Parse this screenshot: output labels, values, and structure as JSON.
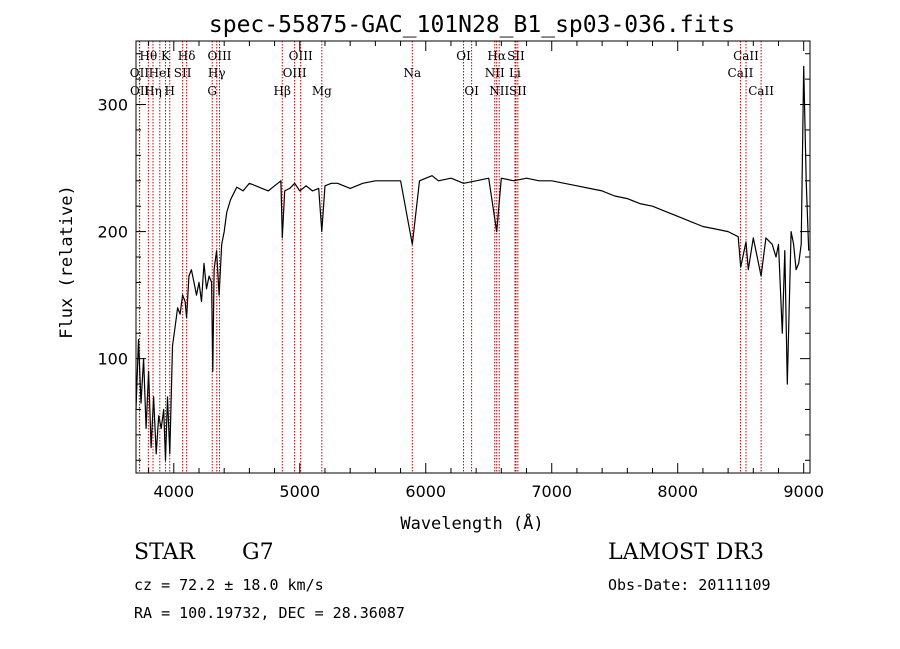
{
  "chart_data": {
    "type": "line",
    "title": "spec-55875-GAC_101N28_B1_sp03-036.fits",
    "xlabel": "Wavelength (Å)",
    "ylabel": "Flux (relative)",
    "xlim": [
      3700,
      9050
    ],
    "ylim": [
      10,
      350
    ],
    "x_ticks": [
      4000,
      5000,
      6000,
      7000,
      8000,
      9000
    ],
    "y_ticks": [
      100,
      200,
      300
    ],
    "series": [
      {
        "name": "spectrum",
        "x": [
          3700,
          3720,
          3740,
          3760,
          3780,
          3800,
          3820,
          3840,
          3860,
          3880,
          3900,
          3920,
          3934,
          3950,
          3968,
          3990,
          4010,
          4030,
          4050,
          4070,
          4090,
          4102,
          4120,
          4140,
          4160,
          4180,
          4200,
          4220,
          4240,
          4260,
          4280,
          4300,
          4310,
          4320,
          4340,
          4360,
          4380,
          4400,
          4420,
          4450,
          4500,
          4550,
          4600,
          4650,
          4700,
          4750,
          4800,
          4850,
          4861,
          4880,
          4920,
          4960,
          5000,
          5050,
          5100,
          5150,
          5175,
          5200,
          5250,
          5300,
          5400,
          5500,
          5600,
          5700,
          5800,
          5893,
          5950,
          6000,
          6050,
          6100,
          6200,
          6300,
          6400,
          6500,
          6563,
          6600,
          6700,
          6800,
          6900,
          7000,
          7100,
          7200,
          7300,
          7400,
          7500,
          7600,
          7700,
          7800,
          7900,
          8000,
          8100,
          8200,
          8300,
          8400,
          8480,
          8500,
          8542,
          8560,
          8600,
          8662,
          8700,
          8750,
          8780,
          8800,
          8830,
          8850,
          8870,
          8900,
          8920,
          8940,
          8960,
          8980,
          9000,
          9020,
          9040
        ],
        "values": [
          60,
          115,
          65,
          100,
          45,
          90,
          30,
          70,
          25,
          55,
          45,
          60,
          20,
          70,
          25,
          110,
          125,
          140,
          135,
          150,
          145,
          132,
          165,
          170,
          160,
          150,
          160,
          145,
          175,
          155,
          165,
          160,
          90,
          170,
          185,
          150,
          190,
          200,
          215,
          225,
          235,
          232,
          238,
          236,
          234,
          232,
          236,
          240,
          195,
          232,
          234,
          238,
          232,
          236,
          232,
          234,
          200,
          236,
          238,
          238,
          234,
          238,
          240,
          240,
          240,
          190,
          240,
          242,
          244,
          240,
          242,
          238,
          240,
          242,
          200,
          242,
          240,
          242,
          240,
          240,
          238,
          236,
          234,
          232,
          228,
          226,
          222,
          220,
          216,
          212,
          208,
          204,
          202,
          200,
          196,
          172,
          192,
          170,
          195,
          165,
          195,
          190,
          180,
          190,
          120,
          185,
          80,
          200,
          190,
          170,
          175,
          190,
          330,
          240,
          185
        ]
      }
    ],
    "emission_lines": [
      {
        "label": "Hθ",
        "wl": 3798,
        "row": 1
      },
      {
        "label": "OII",
        "wl": 3727,
        "row": 2
      },
      {
        "label": "OII",
        "wl": 3729,
        "row": 3
      },
      {
        "label": "HeI",
        "wl": 3889,
        "row": 2
      },
      {
        "label": "Hη",
        "wl": 3835,
        "row": 3
      },
      {
        "label": "K",
        "wl": 3934,
        "row": 1
      },
      {
        "label": "H",
        "wl": 3968,
        "row": 3
      },
      {
        "label": "SII",
        "wl": 4070,
        "row": 2
      },
      {
        "label": "Hδ",
        "wl": 4102,
        "row": 1
      },
      {
        "label": "OIII",
        "wl": 4363,
        "row": 1
      },
      {
        "label": "Hγ",
        "wl": 4341,
        "row": 2
      },
      {
        "label": "G",
        "wl": 4305,
        "row": 3
      },
      {
        "label": "Hβ",
        "wl": 4861,
        "row": 3
      },
      {
        "label": "OIII",
        "wl": 5007,
        "row": 1
      },
      {
        "label": "OIII",
        "wl": 4959,
        "row": 2
      },
      {
        "label": "Mg",
        "wl": 5175,
        "row": 3
      },
      {
        "label": "Na",
        "wl": 5893,
        "row": 2
      },
      {
        "label": "OI",
        "wl": 6300,
        "row": 1
      },
      {
        "label": "OI",
        "wl": 6364,
        "row": 3
      },
      {
        "label": "Hα",
        "wl": 6563,
        "row": 1
      },
      {
        "label": "NII",
        "wl": 6548,
        "row": 2
      },
      {
        "label": "NII",
        "wl": 6583,
        "row": 3
      },
      {
        "label": "SII",
        "wl": 6716,
        "row": 1
      },
      {
        "label": "Li",
        "wl": 6708,
        "row": 2
      },
      {
        "label": "SII",
        "wl": 6731,
        "row": 3
      },
      {
        "label": "CaII",
        "wl": 8542,
        "row": 1
      },
      {
        "label": "CaII",
        "wl": 8498,
        "row": 2
      },
      {
        "label": "CaII",
        "wl": 8662,
        "row": 3
      }
    ]
  },
  "info": {
    "object_class": "STAR",
    "subclass": "G7",
    "survey": "LAMOST DR3",
    "cz": "cz = 72.2 ± 18.0 km/s",
    "obs_date": "Obs-Date: 20111109",
    "coords": "RA = 100.19732, DEC =  28.36087"
  },
  "colors": {
    "line_marker": "#cc0000",
    "spectrum": "#000000",
    "axes": "#000000",
    "background": "#ffffff"
  }
}
